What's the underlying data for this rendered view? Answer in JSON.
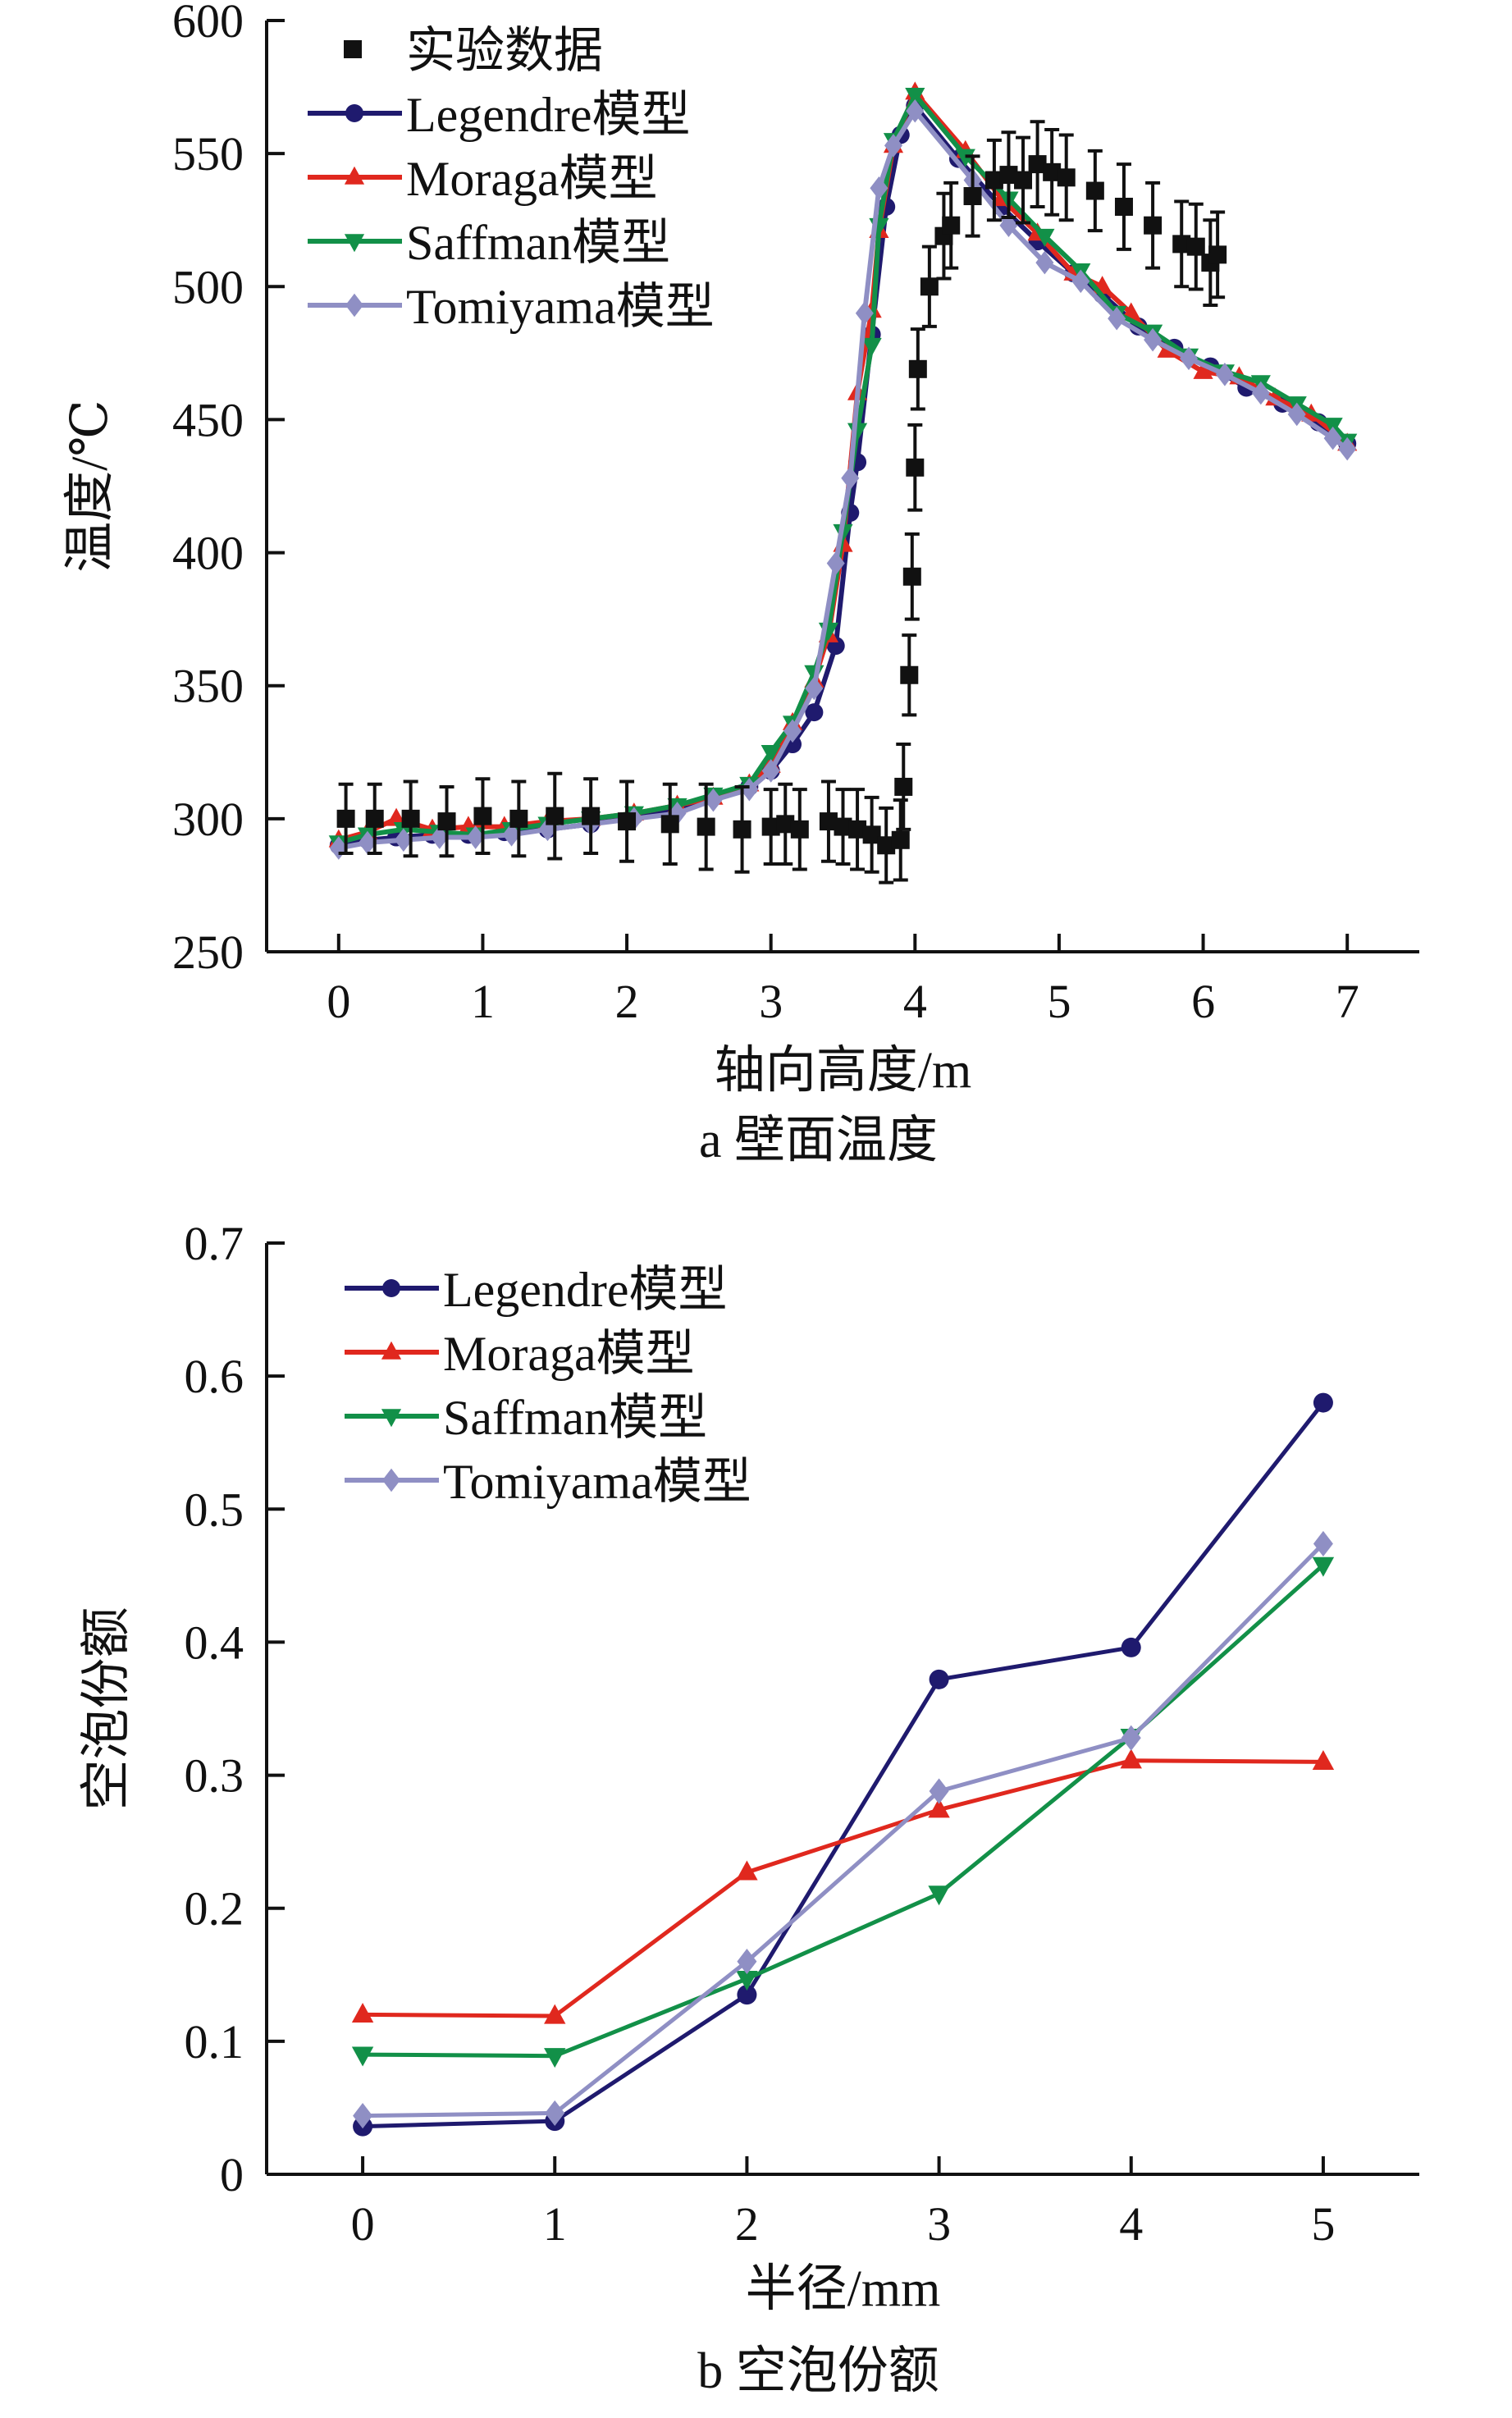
{
  "chart_data": [
    {
      "id": "a",
      "type": "line",
      "caption": "a  壁面温度",
      "xlabel": "轴向高度/m",
      "ylabel": "温度/℃",
      "xlim": [
        -0.5,
        7.5
      ],
      "ylim": [
        250,
        600
      ],
      "xticks": [
        0,
        1,
        2,
        3,
        4,
        5,
        6,
        7
      ],
      "yticks": [
        250,
        300,
        350,
        400,
        450,
        500,
        550,
        600
      ],
      "grid": false,
      "legend_position": "top-left",
      "experimental": {
        "name": "实验数据",
        "color": "#111111",
        "points": [
          {
            "x": 0.05,
            "y": 300,
            "err": 13
          },
          {
            "x": 0.25,
            "y": 300,
            "err": 13
          },
          {
            "x": 0.5,
            "y": 300,
            "err": 14
          },
          {
            "x": 0.75,
            "y": 299,
            "err": 13
          },
          {
            "x": 1.0,
            "y": 301,
            "err": 14
          },
          {
            "x": 1.25,
            "y": 300,
            "err": 14
          },
          {
            "x": 1.5,
            "y": 301,
            "err": 16
          },
          {
            "x": 1.75,
            "y": 301,
            "err": 14
          },
          {
            "x": 2.0,
            "y": 299,
            "err": 15
          },
          {
            "x": 2.3,
            "y": 298,
            "err": 15
          },
          {
            "x": 2.55,
            "y": 297,
            "err": 16
          },
          {
            "x": 2.8,
            "y": 296,
            "err": 16
          },
          {
            "x": 3.0,
            "y": 297,
            "err": 14
          },
          {
            "x": 3.1,
            "y": 298,
            "err": 15
          },
          {
            "x": 3.2,
            "y": 296,
            "err": 15
          },
          {
            "x": 3.4,
            "y": 299,
            "err": 15
          },
          {
            "x": 3.5,
            "y": 297,
            "err": 14
          },
          {
            "x": 3.6,
            "y": 296,
            "err": 15
          },
          {
            "x": 3.7,
            "y": 294,
            "err": 14
          },
          {
            "x": 3.8,
            "y": 290,
            "err": 14
          },
          {
            "x": 3.9,
            "y": 292,
            "err": 15
          },
          {
            "x": 3.92,
            "y": 312,
            "err": 16
          },
          {
            "x": 3.96,
            "y": 354,
            "err": 15
          },
          {
            "x": 3.98,
            "y": 391,
            "err": 16
          },
          {
            "x": 4.0,
            "y": 432,
            "err": 16
          },
          {
            "x": 4.02,
            "y": 469,
            "err": 15
          },
          {
            "x": 4.1,
            "y": 500,
            "err": 15
          },
          {
            "x": 4.2,
            "y": 519,
            "err": 16
          },
          {
            "x": 4.25,
            "y": 523,
            "err": 16
          },
          {
            "x": 4.4,
            "y": 534,
            "err": 15
          },
          {
            "x": 4.55,
            "y": 540,
            "err": 15
          },
          {
            "x": 4.65,
            "y": 542,
            "err": 16
          },
          {
            "x": 4.75,
            "y": 540,
            "err": 16
          },
          {
            "x": 4.85,
            "y": 546,
            "err": 16
          },
          {
            "x": 4.95,
            "y": 543,
            "err": 16
          },
          {
            "x": 5.05,
            "y": 541,
            "err": 16
          },
          {
            "x": 5.25,
            "y": 536,
            "err": 15
          },
          {
            "x": 5.45,
            "y": 530,
            "err": 16
          },
          {
            "x": 5.65,
            "y": 523,
            "err": 16
          },
          {
            "x": 5.85,
            "y": 516,
            "err": 16
          },
          {
            "x": 5.95,
            "y": 515,
            "err": 16
          },
          {
            "x": 6.05,
            "y": 509,
            "err": 16
          },
          {
            "x": 6.1,
            "y": 512,
            "err": 16
          }
        ]
      },
      "series": [
        {
          "name": "Legendre模型",
          "color": "#1f1a6e",
          "marker": "circle",
          "x": [
            0,
            0.2,
            0.4,
            0.65,
            0.9,
            1.15,
            1.45,
            1.75,
            2.05,
            2.35,
            2.6,
            2.85,
            3.0,
            3.15,
            3.3,
            3.45,
            3.55,
            3.6,
            3.7,
            3.8,
            3.9,
            4.0,
            4.3,
            4.6,
            4.85,
            5.1,
            5.3,
            5.55,
            5.8,
            6.05,
            6.3,
            6.55,
            6.8,
            7.0
          ],
          "y": [
            290,
            292,
            293,
            294,
            294,
            295,
            296,
            298,
            301,
            304,
            308,
            312,
            318,
            328,
            340,
            365,
            415,
            434,
            482,
            530,
            557,
            568,
            548,
            530,
            517,
            505,
            497,
            485,
            477,
            470,
            462,
            456,
            449,
            441
          ]
        },
        {
          "name": "Moraga模型",
          "color": "#e0281e",
          "marker": "triangle-up",
          "x": [
            0,
            0.2,
            0.4,
            0.65,
            0.9,
            1.15,
            1.45,
            1.75,
            2.05,
            2.35,
            2.6,
            2.85,
            3.0,
            3.15,
            3.3,
            3.4,
            3.5,
            3.6,
            3.7,
            3.75,
            3.85,
            4.0,
            4.35,
            4.6,
            4.85,
            5.1,
            5.3,
            5.5,
            5.75,
            6.0,
            6.25,
            6.5,
            6.75,
            7.0
          ],
          "y": [
            292,
            295,
            300,
            296,
            297,
            297,
            299,
            300,
            302,
            305,
            308,
            313,
            320,
            336,
            352,
            369,
            403,
            460,
            491,
            521,
            553,
            573,
            551,
            533,
            520,
            505,
            500,
            490,
            476,
            468,
            466,
            458,
            452,
            441
          ]
        },
        {
          "name": "Saffman模型",
          "color": "#129048",
          "marker": "triangle-down",
          "x": [
            0,
            0.2,
            0.45,
            0.7,
            0.95,
            1.2,
            1.45,
            1.75,
            2.05,
            2.35,
            2.6,
            2.85,
            3.0,
            3.15,
            3.3,
            3.4,
            3.5,
            3.6,
            3.7,
            3.75,
            3.85,
            4.0,
            4.35,
            4.65,
            4.9,
            5.15,
            5.4,
            5.65,
            5.9,
            6.15,
            6.4,
            6.65,
            6.9,
            7.0
          ],
          "y": [
            291,
            294,
            296,
            295,
            294,
            296,
            298,
            300,
            302,
            305,
            309,
            313,
            325,
            336,
            355,
            371,
            408,
            446,
            478,
            523,
            555,
            572,
            549,
            533,
            519,
            506,
            490,
            483,
            474,
            468,
            464,
            456,
            448,
            442
          ]
        },
        {
          "name": "Tomiyama模型",
          "color": "#8f8fc4",
          "marker": "diamond",
          "x": [
            0,
            0.2,
            0.45,
            0.7,
            0.95,
            1.2,
            1.45,
            1.75,
            2.05,
            2.35,
            2.6,
            2.85,
            3.0,
            3.15,
            3.3,
            3.45,
            3.55,
            3.65,
            3.75,
            3.85,
            4.0,
            4.4,
            4.65,
            4.9,
            5.15,
            5.4,
            5.65,
            5.9,
            6.15,
            6.4,
            6.65,
            6.9,
            7.0
          ],
          "y": [
            289,
            291,
            292,
            293,
            293,
            294,
            296,
            298,
            300,
            302,
            307,
            311,
            318,
            333,
            349,
            396,
            428,
            490,
            537,
            553,
            566,
            540,
            523,
            509,
            502,
            488,
            480,
            473,
            467,
            460,
            452,
            443,
            439
          ]
        }
      ]
    },
    {
      "id": "b",
      "type": "line",
      "caption": "b  空泡份额",
      "xlabel": "半径/mm",
      "ylabel": "空泡份额",
      "xlim": [
        -0.5,
        5.5
      ],
      "ylim": [
        0,
        0.7
      ],
      "xticks": [
        0,
        1,
        2,
        3,
        4,
        5
      ],
      "yticks": [
        0,
        0.1,
        0.2,
        0.3,
        0.4,
        0.5,
        0.6,
        0.7
      ],
      "ytick_labels": [
        "0",
        "0.1",
        "0.2",
        "0.3",
        "0.4",
        "0.5",
        "0.6",
        "0.7"
      ],
      "grid": false,
      "legend_position": "top-left",
      "categories": [
        0,
        1,
        2,
        3,
        4,
        5
      ],
      "series": [
        {
          "name": "Legendre模型",
          "color": "#1f1a6e",
          "marker": "circle",
          "values": [
            0.036,
            0.04,
            0.135,
            0.372,
            0.396,
            0.58
          ]
        },
        {
          "name": "Moraga模型",
          "color": "#e0281e",
          "marker": "triangle-up",
          "values": [
            0.12,
            0.119,
            0.227,
            0.274,
            0.311,
            0.31
          ]
        },
        {
          "name": "Saffman模型",
          "color": "#129048",
          "marker": "triangle-down",
          "values": [
            0.09,
            0.089,
            0.147,
            0.211,
            0.329,
            0.458
          ]
        },
        {
          "name": "Tomiyama模型",
          "color": "#8f8fc4",
          "marker": "diamond",
          "values": [
            0.044,
            0.046,
            0.16,
            0.288,
            0.328,
            0.474
          ]
        }
      ]
    }
  ]
}
